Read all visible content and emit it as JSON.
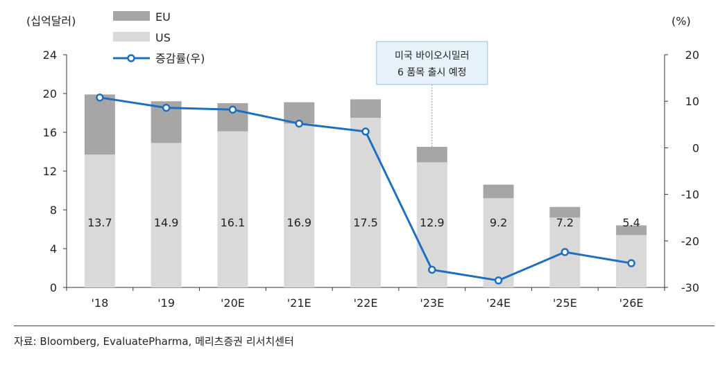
{
  "chart_data": {
    "type": "bar",
    "stacked": true,
    "categories": [
      "'18",
      "'19",
      "'20E",
      "'21E",
      "'22E",
      "'23E",
      "'24E",
      "'25E",
      "'26E"
    ],
    "left_axis_unit": "(십억달러)",
    "right_axis_unit": "(%)",
    "ylim": [
      0,
      24
    ],
    "yticks": [
      0,
      4,
      8,
      12,
      16,
      20,
      24
    ],
    "y2lim": [
      -30,
      20
    ],
    "y2ticks": [
      -30,
      -20,
      -10,
      0,
      10,
      20
    ],
    "grid": false,
    "legend_position": "top-left",
    "series": [
      {
        "name": "US",
        "kind": "bar",
        "axis": "left",
        "color": "#d9d9d9",
        "values": [
          13.7,
          14.9,
          16.1,
          16.9,
          17.5,
          12.9,
          9.2,
          7.2,
          5.4
        ],
        "labels": [
          "13.7",
          "14.9",
          "16.1",
          "16.9",
          "17.5",
          "12.9",
          "9.2",
          "7.2",
          "5.4"
        ]
      },
      {
        "name": "EU",
        "kind": "bar",
        "axis": "left",
        "color": "#a6a6a6",
        "values": [
          6.2,
          4.3,
          2.9,
          2.2,
          1.9,
          1.6,
          1.4,
          1.1,
          1.0
        ]
      },
      {
        "name": "증감률(우)",
        "kind": "line",
        "axis": "right",
        "color": "#1f6fbf",
        "values": [
          10.8,
          8.6,
          8.2,
          5.2,
          3.5,
          -26.2,
          -28.5,
          -22.4,
          -24.8
        ]
      }
    ],
    "annotation": {
      "lines": [
        "미국 바이오시밀러",
        "6 품목 출시 예정"
      ],
      "category": "'23E"
    }
  },
  "source_text": "자료: Bloomberg, EvaluatePharma, 메리츠증권 리서치센터"
}
